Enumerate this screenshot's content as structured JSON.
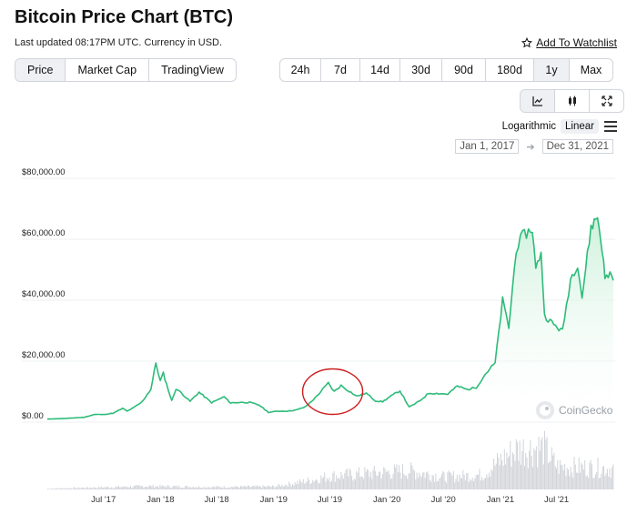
{
  "header": {
    "title": "Bitcoin Price Chart (BTC)",
    "updated": "Last updated 08:17PM UTC. Currency in USD.",
    "watchlist_label": "Add To Watchlist"
  },
  "tabs": [
    {
      "label": "Price",
      "active": true
    },
    {
      "label": "Market Cap",
      "active": false
    },
    {
      "label": "TradingView",
      "active": false
    }
  ],
  "ranges": [
    {
      "label": "24h",
      "active": false
    },
    {
      "label": "7d",
      "active": false
    },
    {
      "label": "14d",
      "active": false
    },
    {
      "label": "30d",
      "active": false
    },
    {
      "label": "90d",
      "active": false
    },
    {
      "label": "180d",
      "active": false
    },
    {
      "label": "1y",
      "active": true
    },
    {
      "label": "Max",
      "active": false
    }
  ],
  "view_icons": [
    "line-chart-icon",
    "candlestick-icon",
    "fullscreen-icon"
  ],
  "scale": {
    "logarithmic": "Logarithmic",
    "linear": "Linear",
    "active": "Linear"
  },
  "date_range": {
    "from": "Jan 1, 2017",
    "to": "Dec 31, 2021"
  },
  "watermark": "CoinGecko",
  "colors": {
    "line": "#2dbb79",
    "fill_top": "#c8efd8",
    "volume": "#d0d3d8",
    "annotation": "#cc1f1f",
    "grid": "#eef0f2"
  },
  "chart_data": {
    "type": "area",
    "ylabel_ticks": [
      "$0.00",
      "$20,000.00",
      "$40,000.00",
      "$60,000.00",
      "$80,000.00"
    ],
    "ylim": [
      0,
      80000
    ],
    "xlim": [
      "2017-01-01",
      "2021-12-31"
    ],
    "x_ticks": [
      {
        "label": "Jul '17",
        "date": "2017-07-01"
      },
      {
        "label": "Jan '18",
        "date": "2018-01-01"
      },
      {
        "label": "Jul '18",
        "date": "2018-07-01"
      },
      {
        "label": "Jan '19",
        "date": "2019-01-01"
      },
      {
        "label": "Jul '19",
        "date": "2019-07-01"
      },
      {
        "label": "Jan '20",
        "date": "2020-01-01"
      },
      {
        "label": "Jul '20",
        "date": "2020-07-01"
      },
      {
        "label": "Jan '21",
        "date": "2021-01-01"
      },
      {
        "label": "Jul '21",
        "date": "2021-07-01"
      }
    ],
    "grid": true,
    "series": [
      {
        "points": [
          [
            "2017-01-01",
            1000
          ],
          [
            "2017-03-01",
            1200
          ],
          [
            "2017-05-01",
            1600
          ],
          [
            "2017-06-01",
            2500
          ],
          [
            "2017-07-01",
            2500
          ],
          [
            "2017-08-01",
            2900
          ],
          [
            "2017-09-01",
            4500
          ],
          [
            "2017-09-15",
            3600
          ],
          [
            "2017-10-01",
            4400
          ],
          [
            "2017-11-01",
            6500
          ],
          [
            "2017-12-01",
            10800
          ],
          [
            "2017-12-17",
            19500
          ],
          [
            "2017-12-31",
            13500
          ],
          [
            "2018-01-10",
            16000
          ],
          [
            "2018-02-06",
            7000
          ],
          [
            "2018-02-20",
            11000
          ],
          [
            "2018-03-10",
            9500
          ],
          [
            "2018-04-06",
            6800
          ],
          [
            "2018-05-05",
            9800
          ],
          [
            "2018-06-15",
            6400
          ],
          [
            "2018-07-25",
            8300
          ],
          [
            "2018-08-15",
            6300
          ],
          [
            "2018-09-15",
            6500
          ],
          [
            "2018-10-15",
            6450
          ],
          [
            "2018-11-15",
            5600
          ],
          [
            "2018-12-15",
            3200
          ],
          [
            "2019-01-15",
            3600
          ],
          [
            "2019-02-15",
            3600
          ],
          [
            "2019-03-15",
            4000
          ],
          [
            "2019-04-15",
            5100
          ],
          [
            "2019-05-15",
            8000
          ],
          [
            "2019-06-26",
            12800
          ],
          [
            "2019-07-15",
            10000
          ],
          [
            "2019-08-06",
            12000
          ],
          [
            "2019-09-01",
            10200
          ],
          [
            "2019-09-25",
            8500
          ],
          [
            "2019-10-26",
            9500
          ],
          [
            "2019-11-25",
            7000
          ],
          [
            "2019-12-18",
            6700
          ],
          [
            "2020-01-15",
            8600
          ],
          [
            "2020-02-12",
            10300
          ],
          [
            "2020-03-13",
            4900
          ],
          [
            "2020-04-15",
            6900
          ],
          [
            "2020-05-15",
            9500
          ],
          [
            "2020-06-15",
            9400
          ],
          [
            "2020-07-15",
            9200
          ],
          [
            "2020-08-15",
            11800
          ],
          [
            "2020-09-15",
            10700
          ],
          [
            "2020-10-15",
            11400
          ],
          [
            "2020-11-15",
            16000
          ],
          [
            "2020-12-15",
            19400
          ],
          [
            "2021-01-08",
            40000
          ],
          [
            "2021-01-28",
            31000
          ],
          [
            "2021-02-21",
            57000
          ],
          [
            "2021-03-13",
            61000
          ],
          [
            "2021-04-14",
            63500
          ],
          [
            "2021-04-25",
            50000
          ],
          [
            "2021-05-12",
            56000
          ],
          [
            "2021-05-23",
            35000
          ],
          [
            "2021-06-22",
            32000
          ],
          [
            "2021-07-20",
            29800
          ],
          [
            "2021-08-15",
            47000
          ],
          [
            "2021-09-07",
            52000
          ],
          [
            "2021-09-21",
            41000
          ],
          [
            "2021-10-20",
            64000
          ],
          [
            "2021-11-10",
            67500
          ],
          [
            "2021-11-25",
            57000
          ],
          [
            "2021-12-04",
            47000
          ],
          [
            "2021-12-20",
            49000
          ],
          [
            "2021-12-31",
            46500
          ]
        ]
      }
    ],
    "volume_envelope": [
      [
        "2017-01-01",
        0.02
      ],
      [
        "2017-12-01",
        0.08
      ],
      [
        "2018-06-01",
        0.06
      ],
      [
        "2019-01-01",
        0.07
      ],
      [
        "2019-05-01",
        0.22
      ],
      [
        "2019-07-01",
        0.32
      ],
      [
        "2020-03-13",
        0.45
      ],
      [
        "2020-07-01",
        0.3
      ],
      [
        "2020-11-01",
        0.35
      ],
      [
        "2021-01-10",
        0.75
      ],
      [
        "2021-02-20",
        0.95
      ],
      [
        "2021-05-19",
        1.0
      ],
      [
        "2021-07-01",
        0.55
      ],
      [
        "2021-12-31",
        0.5
      ]
    ],
    "annotations": [
      {
        "type": "circle",
        "center_date": "2019-07-10",
        "center_value": 10000,
        "color": "#cc1f1f"
      }
    ]
  }
}
